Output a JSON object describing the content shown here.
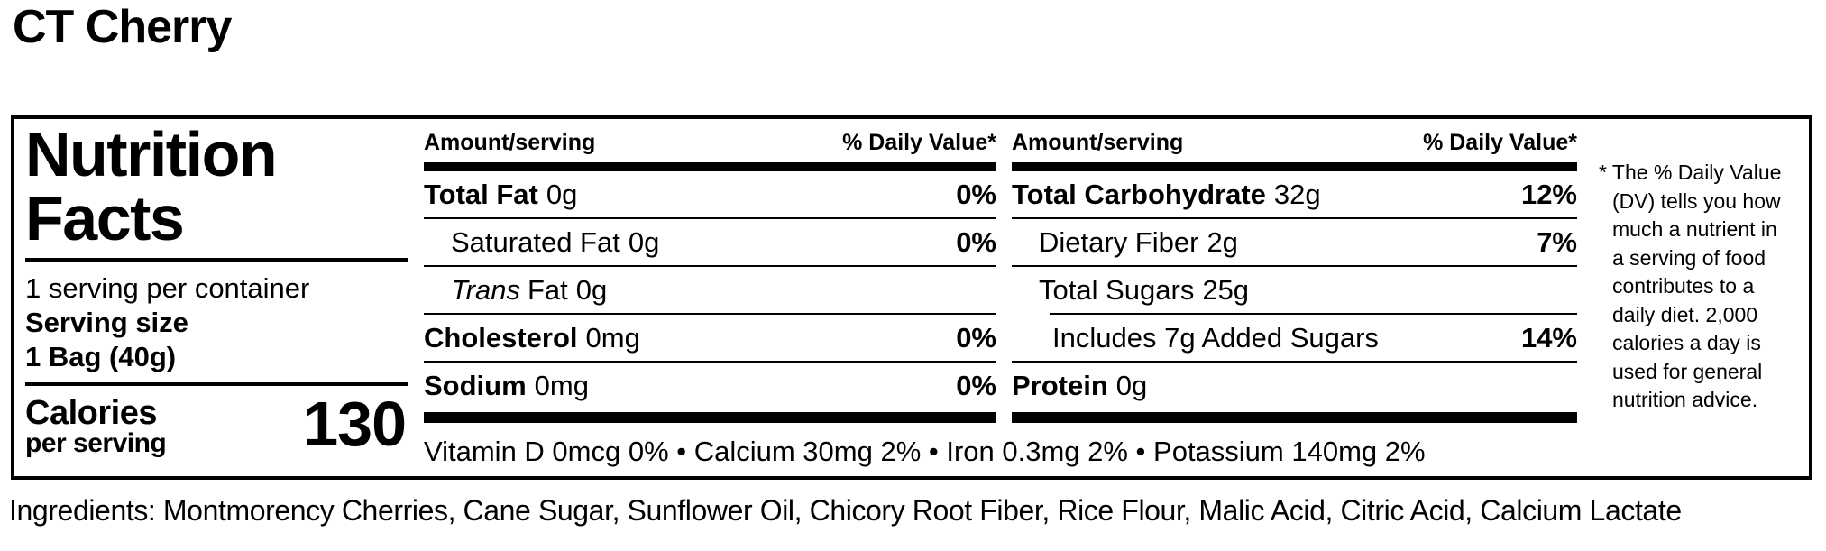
{
  "page": {
    "title": "CT Cherry"
  },
  "label": {
    "heading": [
      "Nutrition",
      "Facts"
    ],
    "servings_per_container": "1 serving per container",
    "serving_size_label": "Serving size",
    "serving_size_value": "1 Bag (40g)",
    "calories_label": "Calories",
    "calories_sublabel": "per serving",
    "calories_value": "130",
    "columns": [
      {
        "header_amount": "Amount/serving",
        "header_dv": "% Daily Value*",
        "rows": [
          {
            "name": "Total Fat",
            "amount": "0g",
            "dv": "0%"
          },
          {
            "name": "Saturated Fat",
            "amount": "0g",
            "dv": "0%"
          },
          {
            "name_italic": "Trans",
            "name": "Fat",
            "amount": "0g",
            "dv": ""
          },
          {
            "name": "Cholesterol",
            "amount": "0mg",
            "dv": "0%"
          },
          {
            "name": "Sodium",
            "amount": "0mg",
            "dv": "0%"
          }
        ]
      },
      {
        "header_amount": "Amount/serving",
        "header_dv": "% Daily Value*",
        "rows": [
          {
            "name": "Total Carbohydrate",
            "amount": "32g",
            "dv": "12%"
          },
          {
            "name": "Dietary Fiber",
            "amount": "2g",
            "dv": "7%"
          },
          {
            "name": "Total Sugars",
            "amount": "25g",
            "dv": ""
          },
          {
            "name": "Includes 7g Added Sugars",
            "amount": "",
            "dv": "14%"
          },
          {
            "name": "Protein",
            "amount": "0g",
            "dv": ""
          }
        ]
      }
    ],
    "micronutrients": "Vitamin D 0mcg 0% • Calcium 30mg 2% • Iron 0.3mg 2% • Potassium 140mg 2%",
    "footnote_lines": [
      "* The % Daily Value",
      "(DV) tells you how",
      "much a nutrient in",
      "a serving of food",
      "contributes to a",
      "daily diet. 2,000",
      "calories a day is",
      "used for general",
      "nutrition advice."
    ]
  },
  "ingredients": "Ingredients: Montmorency Cherries, Cane Sugar, Sunflower Oil, Chicory Root Fiber, Rice Flour, Malic Acid, Citric Acid, Calcium Lactate"
}
